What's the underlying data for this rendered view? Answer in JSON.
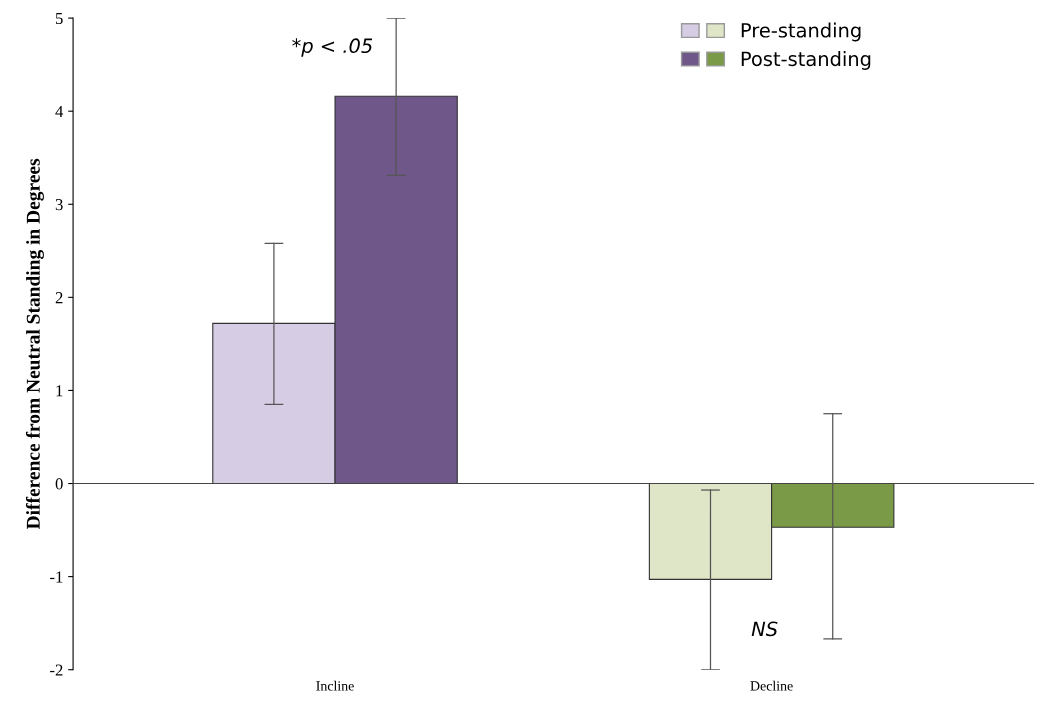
{
  "chart_data": {
    "type": "bar",
    "ylabel": "Difference from Neutral Standing in Degrees",
    "categories": [
      "Incline",
      "Decline"
    ],
    "series": [
      {
        "name": "Pre-standing",
        "colors": [
          "#d6cce3",
          "#dfe6c7"
        ],
        "values": [
          1.72,
          -1.03
        ],
        "errors": [
          [
            0.85,
            2.58
          ],
          [
            -2.0,
            -0.07
          ]
        ]
      },
      {
        "name": "Post-standing",
        "colors": [
          "#70578a",
          "#7a9a48"
        ],
        "values": [
          4.16,
          -0.47
        ],
        "errors": [
          [
            3.31,
            5.0
          ],
          [
            -1.67,
            0.75
          ]
        ]
      }
    ],
    "ylim": [
      -2,
      5
    ],
    "yticks": [
      -2,
      -1,
      0,
      1,
      2,
      3,
      4,
      5
    ],
    "legend": "top right",
    "annotations": [
      "*p < .05",
      "NS"
    ]
  }
}
